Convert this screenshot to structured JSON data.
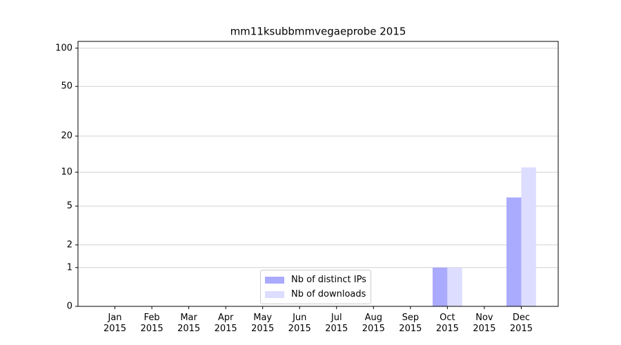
{
  "chart_data": {
    "type": "bar",
    "title": "mm11ksubbmmvegaeprobe 2015",
    "categories": [
      "Jan\n2015",
      "Feb\n2015",
      "Mar\n2015",
      "Apr\n2015",
      "May\n2015",
      "Jun\n2015",
      "Jul\n2015",
      "Aug\n2015",
      "Sep\n2015",
      "Oct\n2015",
      "Nov\n2015",
      "Dec\n2015"
    ],
    "series": [
      {
        "name": "Nb of distinct IPs",
        "color": "#aaaaff",
        "values": [
          0,
          0,
          0,
          0,
          0,
          0,
          0,
          0,
          0,
          1,
          0,
          6
        ]
      },
      {
        "name": "Nb of downloads",
        "color": "#ddddff",
        "values": [
          0,
          0,
          0,
          0,
          0,
          0,
          0,
          0,
          0,
          1,
          0,
          11
        ]
      }
    ],
    "yscale": "log1p",
    "ylim": [
      0,
      113
    ],
    "yticks": [
      0,
      1,
      2,
      5,
      10,
      20,
      50,
      100
    ],
    "grid": true,
    "legend": "lower center"
  }
}
